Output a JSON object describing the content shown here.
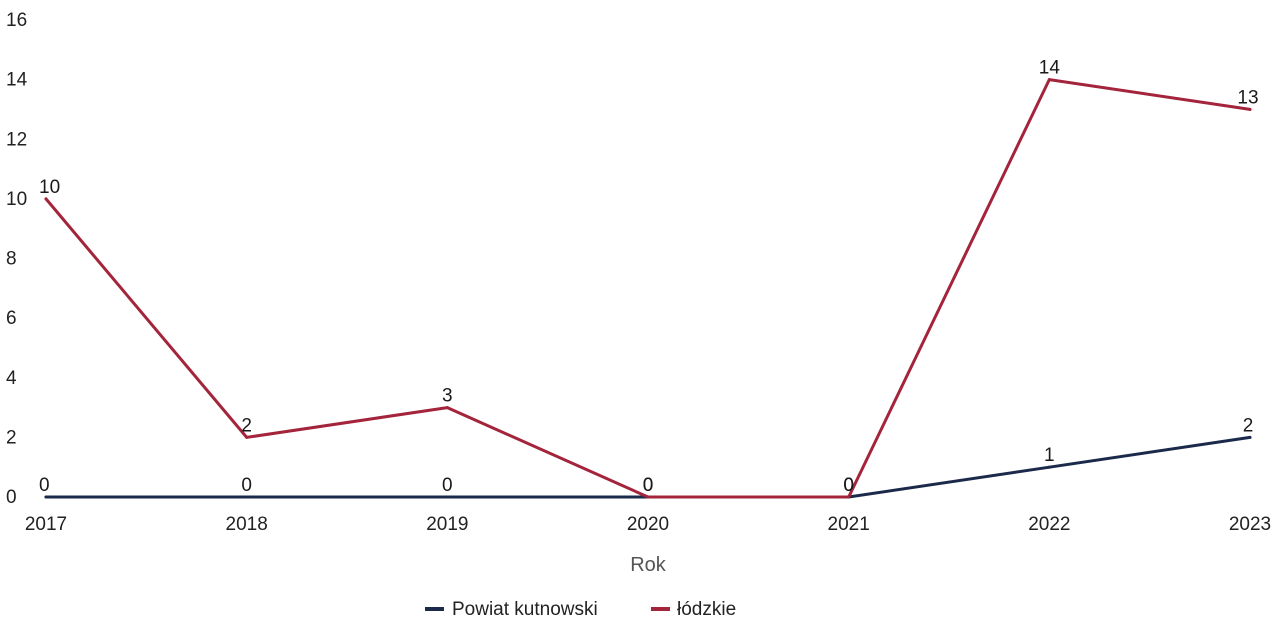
{
  "chart_data": {
    "type": "line",
    "xlabel": "Rok",
    "ylabel": "",
    "categories": [
      "2017",
      "2018",
      "2019",
      "2020",
      "2021",
      "2022",
      "2023"
    ],
    "y_ticks": [
      "0",
      "2",
      "4",
      "6",
      "8",
      "10",
      "12",
      "14",
      "16"
    ],
    "ylim": [
      0,
      16
    ],
    "grid": false,
    "legend_position": "bottom-center",
    "series": [
      {
        "name": "Powiat kutnowski",
        "color": "#1b2a4a",
        "values": [
          0,
          0,
          0,
          0,
          0,
          1,
          2
        ],
        "labels": [
          "0",
          "0",
          "0",
          "0",
          "0",
          "1",
          "2"
        ]
      },
      {
        "name": "łódzkie",
        "color": "#a3243b",
        "values": [
          10,
          2,
          3,
          0,
          0,
          14,
          13
        ],
        "labels": [
          "10",
          "2",
          "3",
          "0",
          "0",
          "14",
          "13"
        ]
      }
    ]
  }
}
